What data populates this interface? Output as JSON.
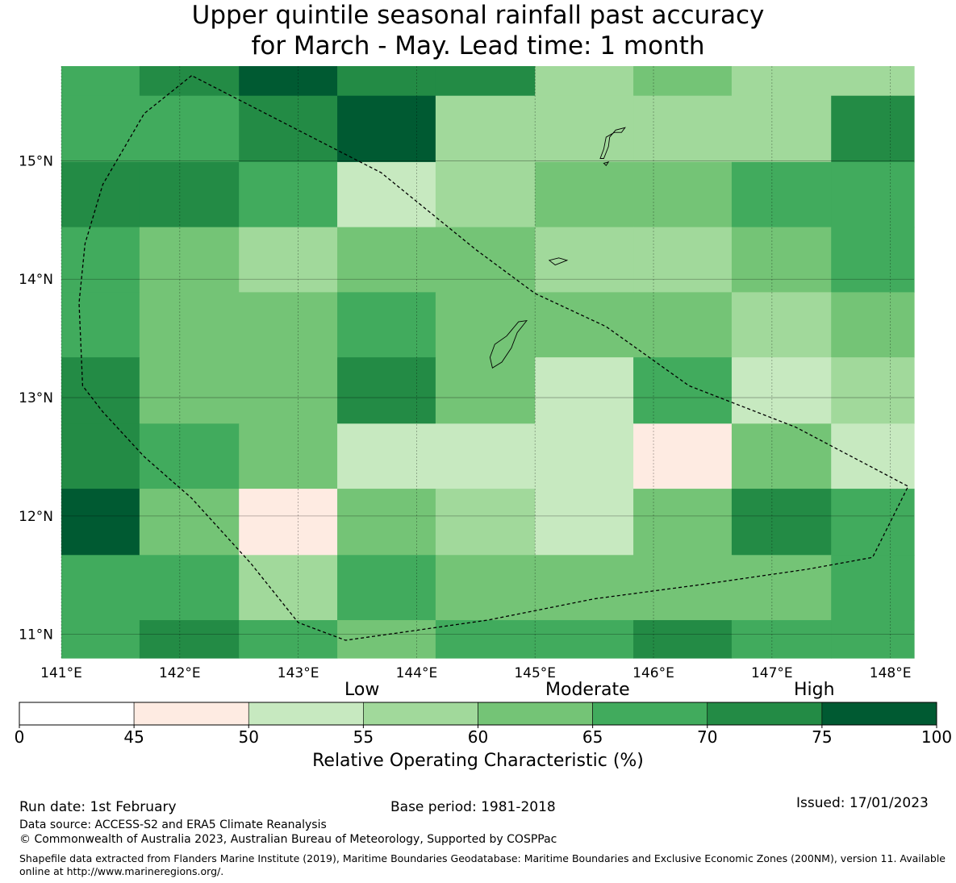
{
  "title": {
    "line1": "Upper quintile seasonal rainfall past accuracy",
    "line2": "for March - May. Lead time: 1 month"
  },
  "map": {
    "extent": {
      "lon": [
        141.0,
        148.2
      ],
      "lat": [
        10.8,
        15.8
      ]
    },
    "xticks": [
      {
        "v": 141,
        "label": "141°E"
      },
      {
        "v": 142,
        "label": "142°E"
      },
      {
        "v": 143,
        "label": "143°E"
      },
      {
        "v": 144,
        "label": "144°E"
      },
      {
        "v": 145,
        "label": "145°E"
      },
      {
        "v": 146,
        "label": "146°E"
      },
      {
        "v": 147,
        "label": "147°E"
      },
      {
        "v": 148,
        "label": "148°E"
      }
    ],
    "yticks": [
      {
        "v": 11,
        "label": "11°N"
      },
      {
        "v": 12,
        "label": "12°N"
      },
      {
        "v": 13,
        "label": "13°N"
      },
      {
        "v": 14,
        "label": "14°N"
      },
      {
        "v": 15,
        "label": "15°N"
      }
    ],
    "grid_lon_edges": [
      141.0,
      141.66,
      142.5,
      143.33,
      144.16,
      145.0,
      145.83,
      146.66,
      147.5,
      148.2
    ],
    "grid_lat_edges": [
      15.8,
      15.55,
      14.99,
      14.44,
      13.89,
      13.34,
      12.78,
      12.23,
      11.67,
      11.12,
      10.8
    ],
    "roc_cells": [
      [
        67,
        72,
        77,
        72,
        72,
        57,
        62,
        57,
        57
      ],
      [
        67,
        67,
        72,
        77,
        57,
        57,
        57,
        57,
        72
      ],
      [
        72,
        72,
        67,
        52,
        57,
        62,
        62,
        67,
        67
      ],
      [
        67,
        62,
        57,
        62,
        62,
        57,
        57,
        62,
        67
      ],
      [
        67,
        62,
        62,
        67,
        62,
        62,
        62,
        57,
        62
      ],
      [
        72,
        62,
        62,
        72,
        62,
        52,
        67,
        52,
        57
      ],
      [
        72,
        67,
        62,
        52,
        52,
        52,
        47,
        62,
        52
      ],
      [
        77,
        62,
        47,
        62,
        57,
        52,
        62,
        72,
        67
      ],
      [
        67,
        67,
        57,
        67,
        62,
        62,
        62,
        62,
        67
      ],
      [
        67,
        72,
        67,
        62,
        67,
        67,
        72,
        67,
        67
      ]
    ],
    "boundary_eez": [
      [
        142.1,
        15.72
      ],
      [
        141.7,
        15.4
      ],
      [
        141.35,
        14.8
      ],
      [
        141.2,
        14.3
      ],
      [
        141.15,
        13.8
      ],
      [
        141.18,
        13.1
      ],
      [
        141.35,
        12.88
      ],
      [
        141.7,
        12.5
      ],
      [
        142.1,
        12.15
      ],
      [
        142.6,
        11.6
      ],
      [
        143.0,
        11.1
      ],
      [
        143.4,
        10.95
      ],
      [
        143.9,
        11.02
      ],
      [
        144.6,
        11.12
      ],
      [
        145.5,
        11.3
      ],
      [
        146.4,
        11.42
      ],
      [
        147.3,
        11.55
      ],
      [
        147.85,
        11.65
      ],
      [
        148.15,
        12.25
      ],
      [
        147.2,
        12.75
      ],
      [
        146.3,
        13.1
      ],
      [
        145.6,
        13.6
      ],
      [
        145.0,
        13.88
      ],
      [
        144.5,
        14.25
      ],
      [
        143.7,
        14.9
      ],
      [
        142.1,
        15.72
      ]
    ],
    "islands": [
      [
        [
          144.93,
          13.65
        ],
        [
          144.85,
          13.55
        ],
        [
          144.8,
          13.42
        ],
        [
          144.72,
          13.3
        ],
        [
          144.64,
          13.25
        ],
        [
          144.62,
          13.34
        ],
        [
          144.66,
          13.45
        ],
        [
          144.76,
          13.52
        ],
        [
          144.86,
          13.64
        ]
      ],
      [
        [
          145.17,
          14.12
        ],
        [
          145.12,
          14.16
        ],
        [
          145.2,
          14.18
        ],
        [
          145.27,
          14.16
        ]
      ],
      [
        [
          145.55,
          15.02
        ],
        [
          145.58,
          15.1
        ],
        [
          145.6,
          15.2
        ],
        [
          145.67,
          15.24
        ],
        [
          145.73,
          15.24
        ],
        [
          145.76,
          15.28
        ],
        [
          145.68,
          15.26
        ],
        [
          145.63,
          15.2
        ],
        [
          145.62,
          15.12
        ],
        [
          145.58,
          15.02
        ]
      ],
      [
        [
          145.58,
          14.98
        ],
        [
          145.62,
          14.99
        ],
        [
          145.6,
          14.96
        ]
      ]
    ]
  },
  "colorbar": {
    "ticks": [
      "0",
      "45",
      "50",
      "55",
      "60",
      "65",
      "70",
      "75",
      "100"
    ],
    "colors": [
      "#ffffff",
      "#feebe2",
      "#c7e9c0",
      "#a1d99b",
      "#74c476",
      "#41ab5d",
      "#238b45",
      "#005a32"
    ],
    "categories": [
      "Low",
      "Moderate",
      "High"
    ],
    "label": "Relative Operating Characteristic (%)"
  },
  "footer": {
    "run_date": "Run date: 1st February",
    "base_period": "Base period: 1981-2018",
    "issued": "Issued: 17/01/2023",
    "data_source": "Data source: ACCESS-S2 and ERA5 Climate Reanalysis",
    "copyright": "© Commonwealth of Australia 2023, Australian Bureau of Meteorology, Supported by COSPPac",
    "shapefile": "Shapefile data extracted from Flanders Marine Institute (2019), Maritime Boundaries Geodatabase: Maritime Boundaries and Exclusive Economic Zones (200NM), version 11. Available online at http://www.marineregions.org/."
  }
}
